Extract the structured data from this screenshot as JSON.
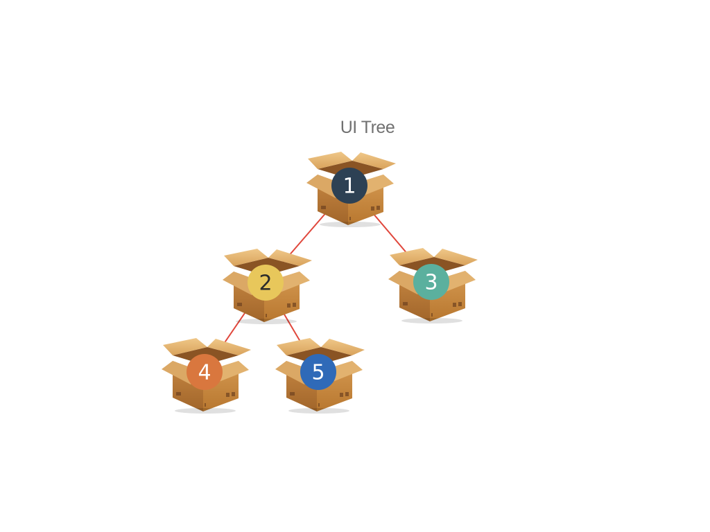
{
  "title": "UI Tree",
  "nodes": [
    {
      "id": "1",
      "label": "1",
      "color": "#2d4154",
      "text_color": "#ffffff",
      "box_icon": "cardboard-box-icon"
    },
    {
      "id": "2",
      "label": "2",
      "color": "#e8c75b",
      "text_color": "#2b2b2b",
      "box_icon": "cardboard-box-icon"
    },
    {
      "id": "3",
      "label": "3",
      "color": "#5bb09e",
      "text_color": "#ffffff",
      "box_icon": "cardboard-box-icon"
    },
    {
      "id": "4",
      "label": "4",
      "color": "#d9773e",
      "text_color": "#ffffff",
      "box_icon": "cardboard-box-icon"
    },
    {
      "id": "5",
      "label": "5",
      "color": "#2f6ab8",
      "text_color": "#ffffff",
      "box_icon": "cardboard-box-icon"
    }
  ],
  "edges": [
    {
      "from": "1",
      "to": "2"
    },
    {
      "from": "1",
      "to": "3"
    },
    {
      "from": "2",
      "to": "4"
    },
    {
      "from": "2",
      "to": "5"
    }
  ],
  "colors": {
    "edge": "#e0473c",
    "box_light": "#d9a35c",
    "box_mid": "#c98a43",
    "box_dark": "#a8692b",
    "box_inside": "#8a5424",
    "title": "#707070"
  }
}
